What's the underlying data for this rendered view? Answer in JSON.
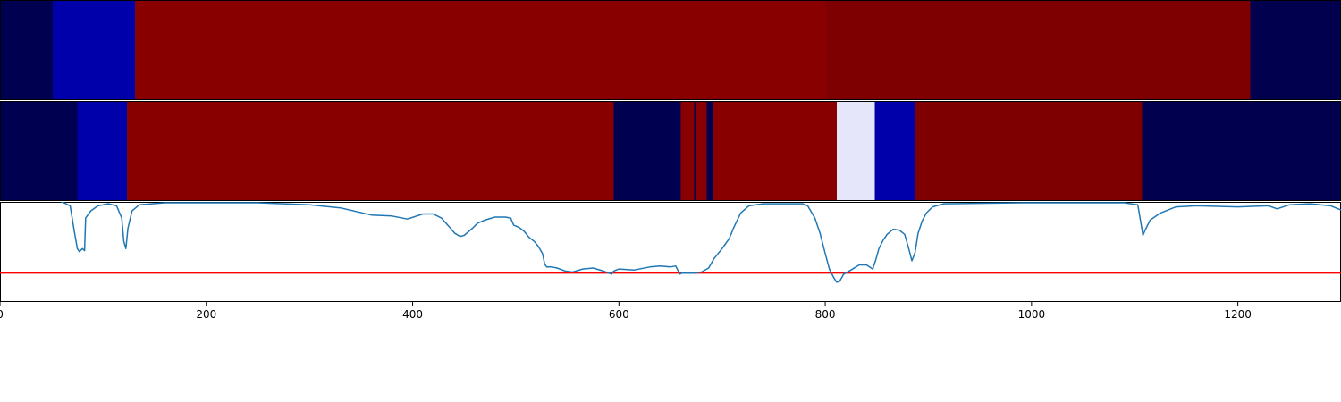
{
  "chart_data": {
    "type": "line",
    "x_range": [
      0,
      1300
    ],
    "x_ticks": [
      {
        "value": 0,
        "label": "0"
      },
      {
        "value": 200,
        "label": "200"
      },
      {
        "value": 400,
        "label": "400"
      },
      {
        "value": 600,
        "label": "600"
      },
      {
        "value": 800,
        "label": "800"
      },
      {
        "value": 1000,
        "label": "1000"
      },
      {
        "value": 1200,
        "label": "1200"
      }
    ],
    "segment_tracks": [
      {
        "name": "",
        "segments": [
          {
            "start": 0,
            "end": 51,
            "color": "#000050"
          },
          {
            "start": 51,
            "end": 131,
            "color": "#0000aa"
          },
          {
            "start": 131,
            "end": 801,
            "color": "#880000"
          },
          {
            "start": 801,
            "end": 1212,
            "color": "#7e0000"
          },
          {
            "start": 1212,
            "end": 1300,
            "color": "#00004f"
          }
        ]
      },
      {
        "name": "",
        "segments": [
          {
            "start": 0,
            "end": 75,
            "color": "#000050"
          },
          {
            "start": 75,
            "end": 123,
            "color": "#0000aa"
          },
          {
            "start": 123,
            "end": 595,
            "color": "#880000"
          },
          {
            "start": 595,
            "end": 660,
            "color": "#000050"
          },
          {
            "start": 660,
            "end": 673,
            "color": "#880000"
          },
          {
            "start": 673,
            "end": 675,
            "color": "#000050"
          },
          {
            "start": 675,
            "end": 685,
            "color": "#880000"
          },
          {
            "start": 685,
            "end": 691,
            "color": "#000050"
          },
          {
            "start": 691,
            "end": 811,
            "color": "#880000"
          },
          {
            "start": 811,
            "end": 848,
            "color": "#e6e6fa"
          },
          {
            "start": 848,
            "end": 887,
            "color": "#0000aa"
          },
          {
            "start": 887,
            "end": 1107,
            "color": "#7e0000"
          },
          {
            "start": 1107,
            "end": 1300,
            "color": "#00004f"
          }
        ]
      }
    ],
    "line": {
      "name": "",
      "color": "#1f77b4",
      "y_range": [
        0,
        1
      ],
      "points": [
        [
          0,
          1.03
        ],
        [
          55,
          1.03
        ],
        [
          62,
          1.0
        ],
        [
          68,
          0.97
        ],
        [
          72,
          0.72
        ],
        [
          75,
          0.55
        ],
        [
          77,
          0.52
        ],
        [
          80,
          0.55
        ],
        [
          82,
          0.53
        ],
        [
          83,
          0.85
        ],
        [
          88,
          0.92
        ],
        [
          95,
          0.97
        ],
        [
          105,
          0.99
        ],
        [
          113,
          0.97
        ],
        [
          118,
          0.85
        ],
        [
          120,
          0.62
        ],
        [
          122,
          0.55
        ],
        [
          124,
          0.75
        ],
        [
          128,
          0.92
        ],
        [
          135,
          0.98
        ],
        [
          160,
          1.0
        ],
        [
          250,
          1.0
        ],
        [
          275,
          0.99
        ],
        [
          300,
          0.98
        ],
        [
          330,
          0.95
        ],
        [
          360,
          0.88
        ],
        [
          380,
          0.87
        ],
        [
          395,
          0.84
        ],
        [
          410,
          0.89
        ],
        [
          420,
          0.89
        ],
        [
          428,
          0.85
        ],
        [
          435,
          0.77
        ],
        [
          441,
          0.7
        ],
        [
          446,
          0.67
        ],
        [
          450,
          0.68
        ],
        [
          458,
          0.75
        ],
        [
          463,
          0.8
        ],
        [
          470,
          0.83
        ],
        [
          480,
          0.86
        ],
        [
          490,
          0.86
        ],
        [
          495,
          0.85
        ],
        [
          498,
          0.78
        ],
        [
          503,
          0.76
        ],
        [
          508,
          0.72
        ],
        [
          513,
          0.66
        ],
        [
          518,
          0.62
        ],
        [
          522,
          0.57
        ],
        [
          526,
          0.5
        ],
        [
          528,
          0.4
        ],
        [
          530,
          0.37
        ],
        [
          535,
          0.37
        ],
        [
          540,
          0.36
        ],
        [
          548,
          0.33
        ],
        [
          555,
          0.32
        ],
        [
          565,
          0.35
        ],
        [
          575,
          0.36
        ],
        [
          585,
          0.33
        ],
        [
          593,
          0.3
        ],
        [
          595,
          0.33
        ],
        [
          600,
          0.35
        ],
        [
          615,
          0.34
        ],
        [
          630,
          0.37
        ],
        [
          640,
          0.38
        ],
        [
          650,
          0.37
        ],
        [
          655,
          0.38
        ],
        [
          659,
          0.3
        ],
        [
          661,
          0.31
        ],
        [
          672,
          0.31
        ],
        [
          680,
          0.32
        ],
        [
          687,
          0.36
        ],
        [
          692,
          0.45
        ],
        [
          700,
          0.55
        ],
        [
          707,
          0.65
        ],
        [
          711,
          0.75
        ],
        [
          718,
          0.9
        ],
        [
          726,
          0.97
        ],
        [
          740,
          0.99
        ],
        [
          778,
          0.99
        ],
        [
          783,
          0.97
        ],
        [
          790,
          0.85
        ],
        [
          795,
          0.7
        ],
        [
          800,
          0.5
        ],
        [
          804,
          0.35
        ],
        [
          808,
          0.27
        ],
        [
          811,
          0.22
        ],
        [
          814,
          0.23
        ],
        [
          818,
          0.3
        ],
        [
          825,
          0.34
        ],
        [
          833,
          0.39
        ],
        [
          840,
          0.39
        ],
        [
          846,
          0.35
        ],
        [
          849,
          0.44
        ],
        [
          852,
          0.55
        ],
        [
          856,
          0.63
        ],
        [
          860,
          0.69
        ],
        [
          866,
          0.74
        ],
        [
          872,
          0.73
        ],
        [
          877,
          0.69
        ],
        [
          881,
          0.55
        ],
        [
          884,
          0.43
        ],
        [
          887,
          0.51
        ],
        [
          890,
          0.7
        ],
        [
          894,
          0.82
        ],
        [
          898,
          0.9
        ],
        [
          904,
          0.96
        ],
        [
          915,
          0.99
        ],
        [
          990,
          1.0
        ],
        [
          1090,
          1.0
        ],
        [
          1103,
          0.98
        ],
        [
          1106,
          0.8
        ],
        [
          1108,
          0.68
        ],
        [
          1110,
          0.73
        ],
        [
          1115,
          0.83
        ],
        [
          1125,
          0.9
        ],
        [
          1140,
          0.96
        ],
        [
          1160,
          0.97
        ],
        [
          1200,
          0.96
        ],
        [
          1230,
          0.97
        ],
        [
          1238,
          0.94
        ],
        [
          1250,
          0.98
        ],
        [
          1270,
          0.99
        ],
        [
          1290,
          0.97
        ],
        [
          1300,
          0.93
        ]
      ]
    },
    "threshold": {
      "value": 0.31,
      "color": "#ff0000"
    },
    "grid": false,
    "xlabel": "",
    "ylabel": "",
    "title": ""
  }
}
